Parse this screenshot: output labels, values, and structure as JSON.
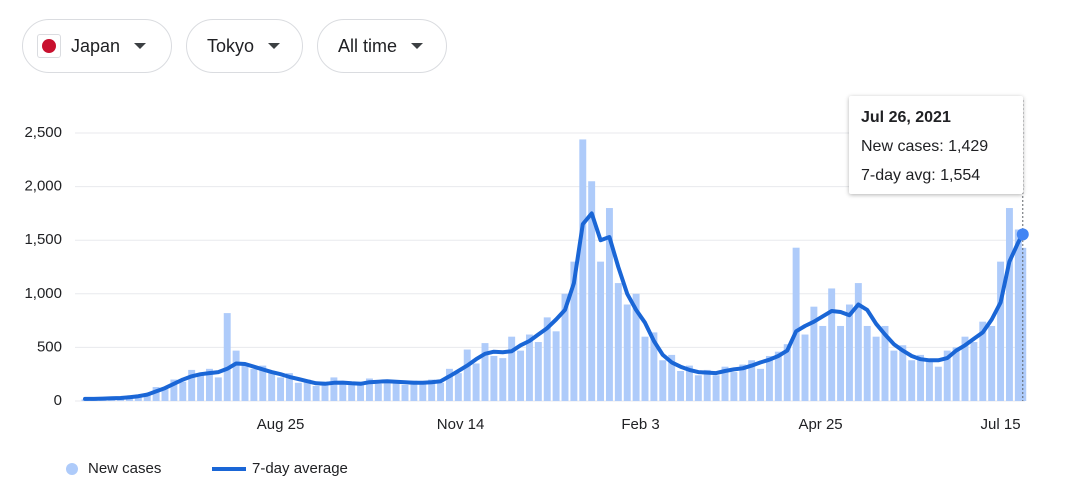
{
  "filters": [
    "Japan",
    "Tokyo",
    "All time"
  ],
  "tooltip": {
    "title": "Jul 26, 2021",
    "rows": [
      "New cases: 1,429",
      "7-day avg: 1,554"
    ]
  },
  "chart_data": {
    "type": "bar-line",
    "x": [
      0,
      4,
      8,
      12,
      16,
      20,
      24,
      28,
      32,
      36,
      40,
      44,
      48,
      52,
      56,
      60,
      64,
      68,
      72,
      76,
      80,
      84,
      88,
      92,
      96,
      100,
      104,
      108,
      112,
      116,
      120,
      124,
      128,
      132,
      136,
      140,
      144,
      148,
      152,
      156,
      160,
      164,
      168,
      172,
      176,
      180,
      184,
      188,
      192,
      196,
      200,
      204,
      208,
      212,
      216,
      220,
      224,
      228,
      232,
      236,
      240,
      244,
      248,
      252,
      256,
      260,
      264,
      268,
      272,
      276,
      280,
      284,
      288,
      292,
      296,
      300,
      304,
      308,
      312,
      316,
      320,
      324,
      328,
      332,
      336,
      340,
      344,
      348,
      352,
      356,
      360,
      364,
      368,
      372,
      376,
      380,
      384,
      388,
      392,
      396,
      400,
      404,
      408,
      412,
      416,
      420,
      422
    ],
    "xlim": [
      0,
      423
    ],
    "xticks": [
      {
        "value": 88,
        "label": "Aug 25"
      },
      {
        "value": 169,
        "label": "Nov 14"
      },
      {
        "value": 250,
        "label": "Feb 3"
      },
      {
        "value": 331,
        "label": "Apr 25"
      },
      {
        "value": 412,
        "label": "Jul 15"
      }
    ],
    "ylim": [
      0,
      2500
    ],
    "yticks": [
      0,
      500,
      {
        "value": 1000,
        "label": "1,000"
      },
      {
        "value": 1500,
        "label": "1,500"
      },
      {
        "value": 2000,
        "label": "2,000"
      },
      {
        "value": 2500,
        "label": "2,500"
      }
    ],
    "grid": true,
    "series": [
      {
        "name": "New cases",
        "type": "bar",
        "color": "#aecbfa",
        "values": [
          15,
          25,
          20,
          30,
          25,
          45,
          40,
          55,
          130,
          110,
          200,
          180,
          290,
          240,
          300,
          220,
          820,
          470,
          330,
          300,
          330,
          260,
          220,
          260,
          170,
          200,
          140,
          180,
          220,
          160,
          150,
          180,
          210,
          160,
          200,
          170,
          150,
          190,
          160,
          200,
          170,
          300,
          260,
          480,
          350,
          540,
          420,
          400,
          600,
          470,
          620,
          550,
          780,
          650,
          1000,
          1300,
          2440,
          2050,
          1300,
          1800,
          1100,
          900,
          1000,
          600,
          640,
          380,
          430,
          280,
          330,
          240,
          290,
          240,
          320,
          270,
          340,
          380,
          300,
          420,
          460,
          530,
          1430,
          620,
          880,
          700,
          1050,
          700,
          900,
          1100,
          700,
          600,
          700,
          470,
          520,
          380,
          430,
          380,
          320,
          470,
          500,
          600,
          550,
          740,
          700,
          1300,
          1800,
          1600,
          1429
        ]
      },
      {
        "name": "7-day average",
        "type": "line",
        "color": "#1a66d6",
        "values": [
          20,
          20,
          22,
          25,
          28,
          35,
          45,
          60,
          90,
          120,
          160,
          200,
          230,
          250,
          260,
          270,
          300,
          350,
          345,
          320,
          295,
          270,
          250,
          225,
          205,
          185,
          165,
          160,
          170,
          172,
          165,
          160,
          175,
          180,
          185,
          180,
          175,
          170,
          170,
          175,
          185,
          230,
          280,
          330,
          390,
          440,
          460,
          455,
          465,
          520,
          560,
          620,
          680,
          760,
          850,
          1100,
          1650,
          1750,
          1500,
          1530,
          1250,
          1000,
          850,
          730,
          560,
          430,
          360,
          320,
          290,
          270,
          265,
          260,
          280,
          295,
          305,
          330,
          360,
          385,
          420,
          470,
          650,
          700,
          740,
          790,
          840,
          830,
          800,
          900,
          850,
          720,
          620,
          530,
          470,
          420,
          390,
          380,
          380,
          400,
          470,
          520,
          580,
          640,
          760,
          920,
          1300,
          1480,
          1554
        ]
      }
    ],
    "legend": "bottom-left"
  }
}
